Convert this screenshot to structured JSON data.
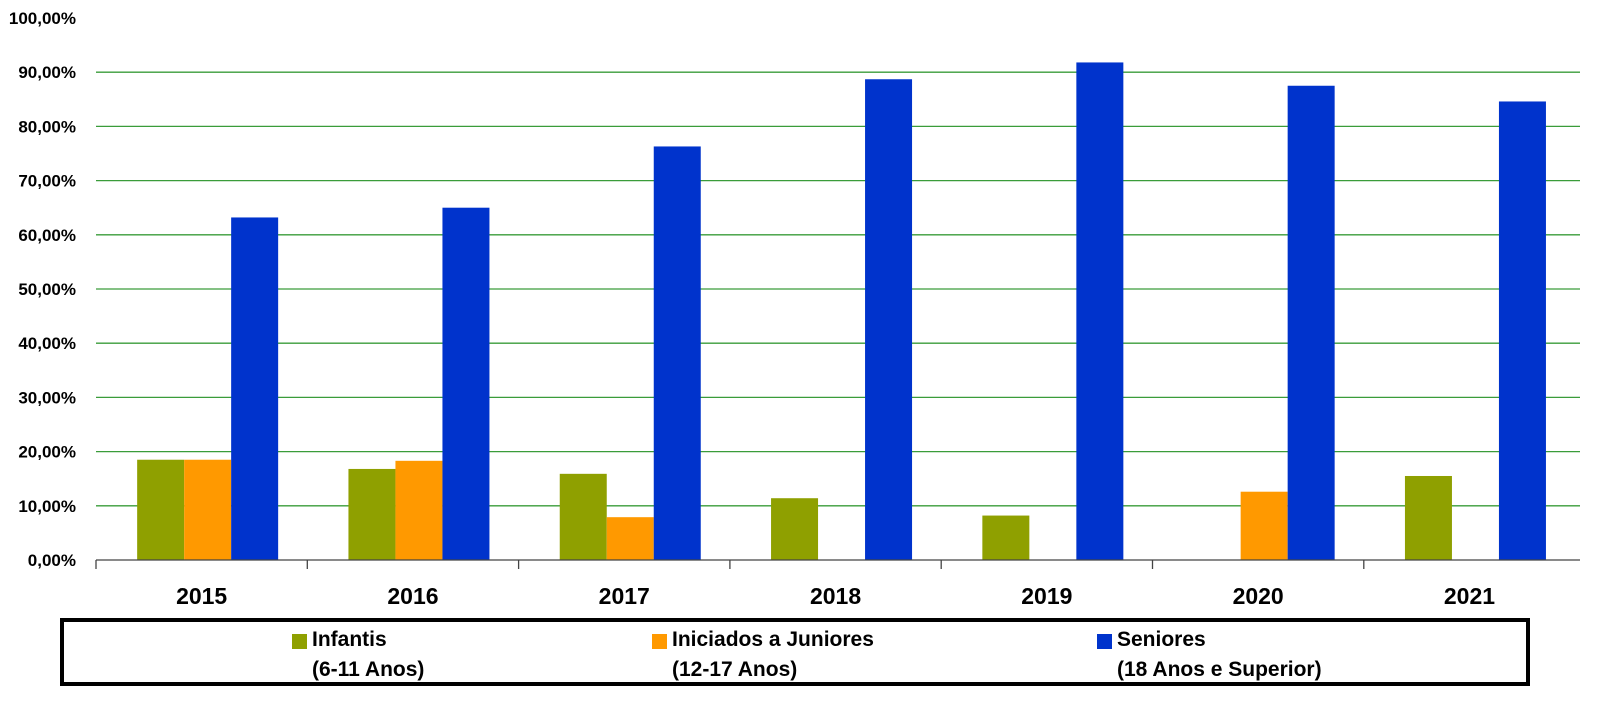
{
  "chart_data": {
    "type": "bar",
    "title": "",
    "xlabel": "",
    "ylabel": "",
    "categories": [
      "2015",
      "2016",
      "2017",
      "2018",
      "2019",
      "2020",
      "2021"
    ],
    "ylim": [
      0,
      100
    ],
    "ytick_values": [
      0,
      10,
      20,
      30,
      40,
      50,
      60,
      70,
      80,
      90,
      100
    ],
    "ytick_labels": [
      "0,00%",
      "10,00%",
      "20,00%",
      "30,00%",
      "40,00%",
      "50,00%",
      "60,00%",
      "70,00%",
      "80,00%",
      "90,00%",
      "100,00%"
    ],
    "grid": true,
    "gridline_color": "#3a9c3a",
    "legend_position": "bottom",
    "series": [
      {
        "name": "Infantis",
        "range": "(6-11 Anos)",
        "color": "#8fa000",
        "values": [
          18.5,
          16.8,
          15.9,
          11.4,
          8.2,
          0,
          15.5
        ]
      },
      {
        "name": "Iniciados a Juniores",
        "range": "(12-17 Anos)",
        "color": "#ff9900",
        "values": [
          18.5,
          18.3,
          7.9,
          0,
          0,
          12.6,
          0
        ]
      },
      {
        "name": "Seniores",
        "range": "(18 Anos e Superior)",
        "color": "#0033cc",
        "values": [
          63.2,
          65.0,
          76.3,
          88.7,
          91.8,
          87.5,
          84.6
        ]
      }
    ]
  }
}
